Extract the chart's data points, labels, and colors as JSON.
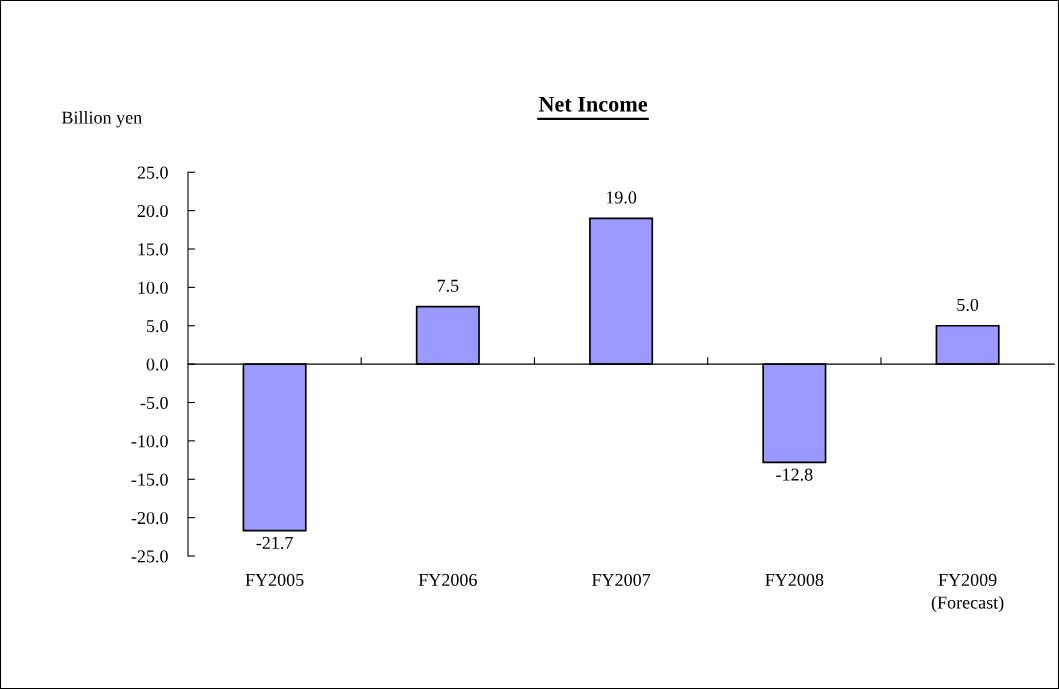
{
  "chart_data": {
    "type": "bar",
    "title": "Net Income",
    "ylabel": "Billion yen",
    "categories": [
      "FY2005",
      "FY2006",
      "FY2007",
      "FY2008",
      "FY2009\n(Forecast)"
    ],
    "values": [
      -21.7,
      7.5,
      19.0,
      -12.8,
      5.0
    ],
    "value_labels": [
      "-21.7",
      "7.5",
      "19.0",
      "-12.8",
      "5.0"
    ],
    "color": "#9999ff",
    "ylim": [
      -25,
      25
    ],
    "yticks": [
      {
        "value": -25,
        "label": "-25.0"
      },
      {
        "value": -20,
        "label": "-20.0"
      },
      {
        "value": -15,
        "label": "-15.0"
      },
      {
        "value": -10,
        "label": "-10.0"
      },
      {
        "value": -5,
        "label": "-5.0"
      },
      {
        "value": 0,
        "label": "0.0"
      },
      {
        "value": 5,
        "label": "5.0"
      },
      {
        "value": 10,
        "label": "10.0"
      },
      {
        "value": 15,
        "label": "15.0"
      },
      {
        "value": 20,
        "label": "20.0"
      },
      {
        "value": 25,
        "label": "25.0"
      }
    ],
    "legend": false
  }
}
